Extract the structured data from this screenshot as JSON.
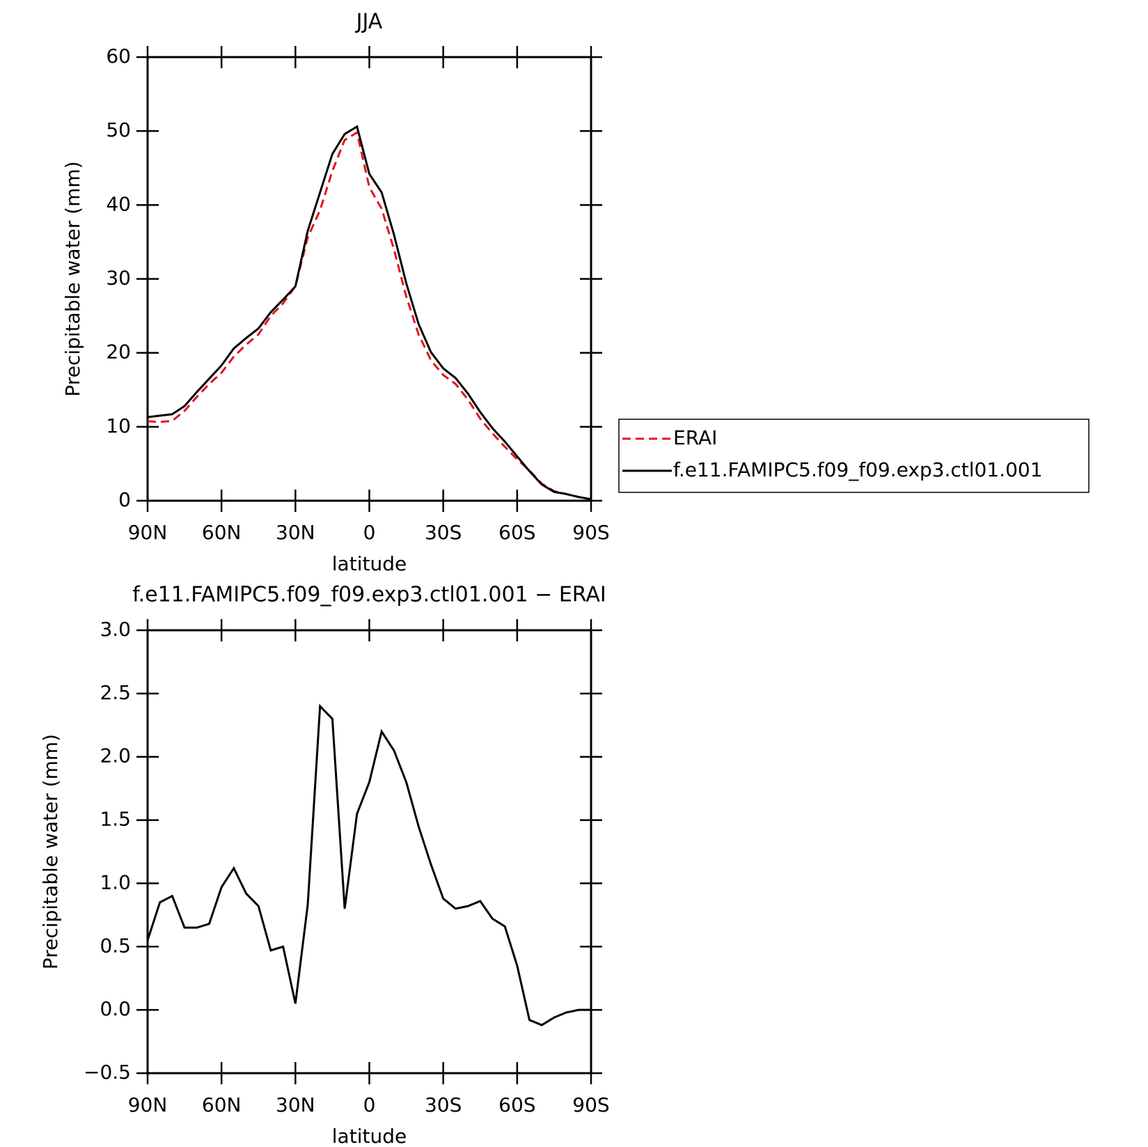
{
  "chart_data": [
    {
      "type": "line",
      "title": "JJA",
      "xlabel": "latitude",
      "ylabel": "Precipitable water (mm)",
      "x": [
        90,
        85,
        80,
        75,
        70,
        65,
        60,
        55,
        50,
        45,
        40,
        35,
        30,
        25,
        20,
        15,
        10,
        5,
        0,
        -5,
        -10,
        -15,
        -20,
        -25,
        -30,
        -35,
        -40,
        -45,
        -50,
        -55,
        -60,
        -65,
        -70,
        -75,
        -80,
        -85,
        -90
      ],
      "series": [
        {
          "name": "ERAI",
          "color": "#e8141b",
          "linestyle": "dashed",
          "values": [
            10.75,
            10.65,
            10.8,
            12.15,
            14.05,
            15.8,
            17.3,
            19.5,
            21.1,
            22.5,
            25.0,
            26.7,
            29.0,
            35.6,
            39.3,
            44.6,
            48.8,
            49.8,
            42.4,
            39.5,
            34.0,
            27.6,
            22.5,
            19.0,
            17.0,
            15.8,
            13.7,
            11.1,
            9.1,
            7.3,
            5.6,
            4.1,
            2.3,
            1.3,
            0.9,
            0.5,
            0.2
          ]
        },
        {
          "name": "f.e11.FAMIPC5.f09_f09.exp3.ctl01.001",
          "color": "#000000",
          "linestyle": "solid",
          "values": [
            11.3,
            11.5,
            11.7,
            12.8,
            14.7,
            16.5,
            18.3,
            20.6,
            22.0,
            23.3,
            25.5,
            27.2,
            29.0,
            36.5,
            41.7,
            46.9,
            49.6,
            50.6,
            44.2,
            41.7,
            36.0,
            29.4,
            23.9,
            20.1,
            17.9,
            16.6,
            14.5,
            12.0,
            9.8,
            8.0,
            6.0,
            4.0,
            2.2,
            1.2,
            0.9,
            0.5,
            0.2
          ]
        }
      ],
      "xlim": [
        90,
        -90
      ],
      "xticks": [
        {
          "value": 90,
          "label": "90N"
        },
        {
          "value": 60,
          "label": "60N"
        },
        {
          "value": 30,
          "label": "30N"
        },
        0,
        {
          "value": -30,
          "label": "30S"
        },
        {
          "value": -60,
          "label": "60S"
        },
        {
          "value": -90,
          "label": "90S"
        }
      ],
      "ylim": [
        0,
        60
      ],
      "yticks": [
        0,
        10,
        20,
        30,
        40,
        50,
        60
      ],
      "legend": "right"
    },
    {
      "type": "line",
      "title": "f.e11.FAMIPC5.f09_f09.exp3.ctl01.001 − ERAI",
      "xlabel": "latitude",
      "ylabel": "Precipitable water (mm)",
      "x": [
        90,
        85,
        80,
        75,
        70,
        65,
        60,
        55,
        50,
        45,
        40,
        35,
        30,
        25,
        20,
        15,
        10,
        5,
        0,
        -5,
        -10,
        -15,
        -20,
        -25,
        -30,
        -35,
        -40,
        -45,
        -50,
        -55,
        -60,
        -65,
        -70,
        -75,
        -80,
        -85,
        -90
      ],
      "series": [
        {
          "color": "#000000",
          "linestyle": "solid",
          "values": [
            0.55,
            0.85,
            0.9,
            0.65,
            0.65,
            0.68,
            0.97,
            1.12,
            0.92,
            0.82,
            0.47,
            0.5,
            0.05,
            0.83,
            2.4,
            2.3,
            0.8,
            1.55,
            1.8,
            2.2,
            2.05,
            1.8,
            1.45,
            1.15,
            0.88,
            0.8,
            0.82,
            0.86,
            0.72,
            0.66,
            0.35,
            -0.08,
            -0.12,
            -0.06,
            -0.02,
            0.0,
            0.0
          ]
        }
      ],
      "xlim": [
        90,
        -90
      ],
      "xticks": [
        {
          "value": 90,
          "label": "90N"
        },
        {
          "value": 60,
          "label": "60N"
        },
        {
          "value": 30,
          "label": "30N"
        },
        0,
        {
          "value": -30,
          "label": "30S"
        },
        {
          "value": -60,
          "label": "60S"
        },
        {
          "value": -90,
          "label": "90S"
        }
      ],
      "ylim": [
        -0.5,
        3.0
      ],
      "yticks": [
        {
          "value": -0.5,
          "label": "−0.5"
        },
        {
          "value": 0,
          "label": "0.0"
        },
        0.5,
        {
          "value": 1,
          "label": "1.0"
        },
        1.5,
        {
          "value": 2,
          "label": "2.0"
        },
        2.5,
        {
          "value": 3,
          "label": "3.0"
        }
      ]
    }
  ]
}
